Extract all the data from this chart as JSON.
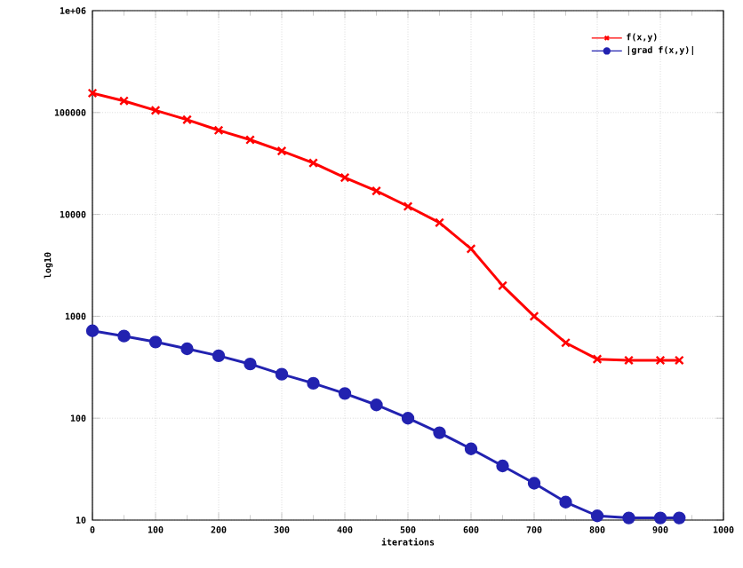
{
  "chart_data": {
    "type": "line",
    "xlabel": "iterations",
    "ylabel": "log10",
    "log": "y",
    "grid": true,
    "legend": "top right",
    "line_style": "solid",
    "xlim": [
      0,
      1000
    ],
    "xticks": [
      0,
      100,
      200,
      300,
      400,
      500,
      600,
      700,
      800,
      900,
      1000
    ],
    "ylim": [
      10,
      1000000
    ],
    "yticks": [
      10,
      100,
      1000,
      10000,
      100000,
      {
        "value": 1000000,
        "label": "1e+06"
      }
    ],
    "series": [
      {
        "name": "f(x,y)",
        "color": "#ff0000",
        "marker": "cross",
        "x": [
          0,
          50,
          100,
          150,
          200,
          250,
          300,
          350,
          400,
          450,
          500,
          550,
          600,
          650,
          700,
          750,
          800,
          850,
          900,
          930
        ],
        "values": [
          155000,
          130000,
          105000,
          85000,
          67000,
          54000,
          42000,
          32000,
          23000,
          17000,
          12000,
          8300,
          4600,
          2000,
          1000,
          550,
          380,
          370,
          370,
          370
        ]
      },
      {
        "name": "|grad f(x,y)|",
        "color": "#2222b0",
        "marker": "circle",
        "x": [
          0,
          50,
          100,
          150,
          200,
          250,
          300,
          350,
          400,
          450,
          500,
          550,
          600,
          650,
          700,
          750,
          800,
          850,
          900,
          930
        ],
        "values": [
          720,
          640,
          560,
          480,
          410,
          340,
          270,
          220,
          175,
          135,
          100,
          72,
          50,
          34,
          23,
          15,
          11,
          10.5,
          10.5,
          10.5
        ]
      }
    ]
  }
}
